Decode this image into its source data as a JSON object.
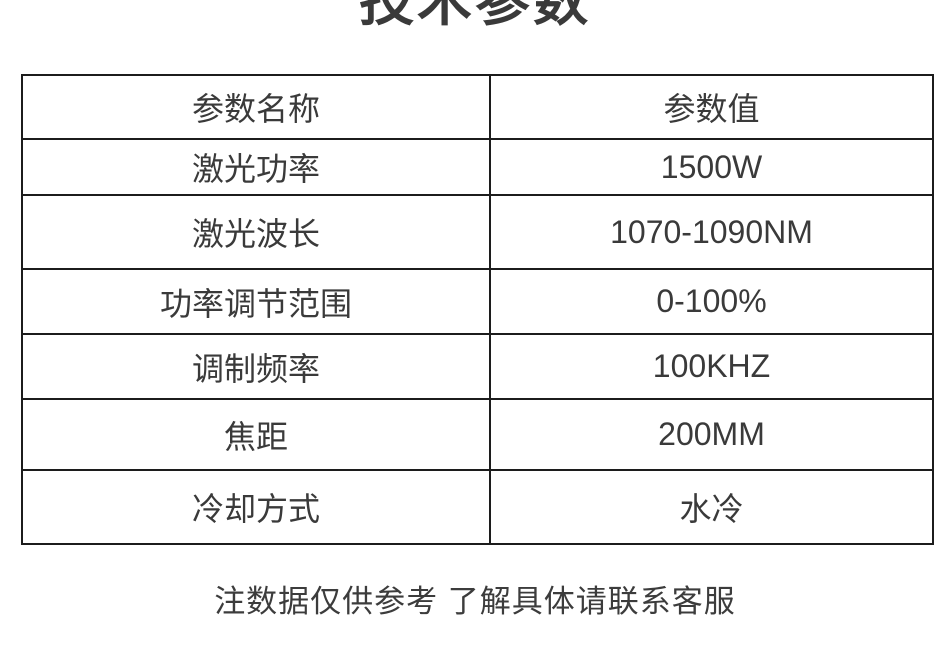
{
  "page": {
    "title": "技术参数",
    "footer_note": "注数据仅供参考 了解具体请联系客服"
  },
  "table": {
    "headers": [
      "参数名称",
      "参数值"
    ],
    "rows": [
      {
        "name": "激光功率",
        "value": "1500W"
      },
      {
        "name": "激光波长",
        "value": "1070-1090NM"
      },
      {
        "name": "功率调节范围",
        "value": "0-100%"
      },
      {
        "name": "调制频率",
        "value": "100KHZ"
      },
      {
        "name": "焦距",
        "value": "200MM"
      },
      {
        "name": "冷却方式",
        "value": "水冷"
      }
    ]
  },
  "colors": {
    "background": "#ffffff",
    "text": "#3a3a3a",
    "table_border": "#1c1c1c"
  }
}
